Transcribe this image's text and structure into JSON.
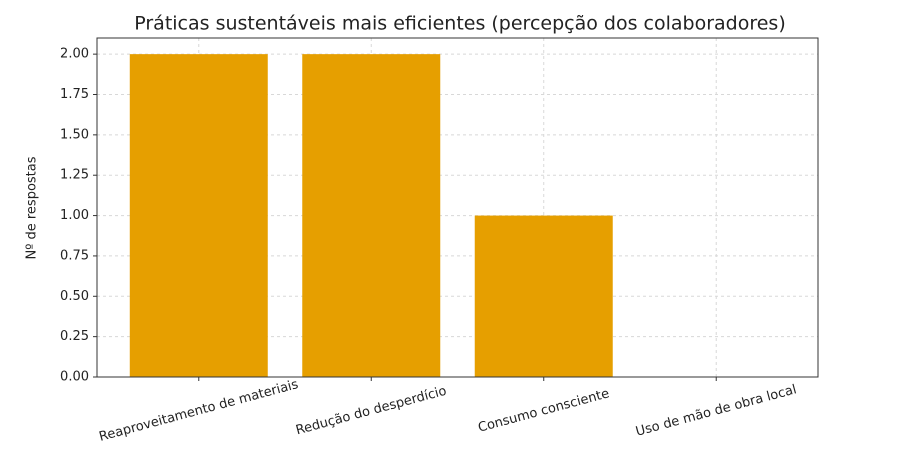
{
  "chart_data": {
    "type": "bar",
    "title": "Práticas sustentáveis mais eficientes (percepção dos colaboradores)",
    "y_label": "Nº de respostas",
    "categories": [
      "Reaproveitamento de materiais",
      "Redução do desperdício",
      "Consumo consciente",
      "Uso de mão de obra local"
    ],
    "values": [
      2,
      2,
      1,
      0
    ],
    "color": "#e69f00",
    "ylim": [
      0,
      2.1
    ],
    "yticks": [
      {
        "value": 0,
        "label": "0.00"
      },
      {
        "value": 0.25,
        "label": "0.25"
      },
      {
        "value": 0.5,
        "label": "0.50"
      },
      {
        "value": 0.75,
        "label": "0.75"
      },
      {
        "value": 1,
        "label": "1.00"
      },
      {
        "value": 1.25,
        "label": "1.25"
      },
      {
        "value": 1.5,
        "label": "1.50"
      },
      {
        "value": 1.75,
        "label": "1.75"
      },
      {
        "value": 2,
        "label": "2.00"
      }
    ],
    "grid": true
  }
}
